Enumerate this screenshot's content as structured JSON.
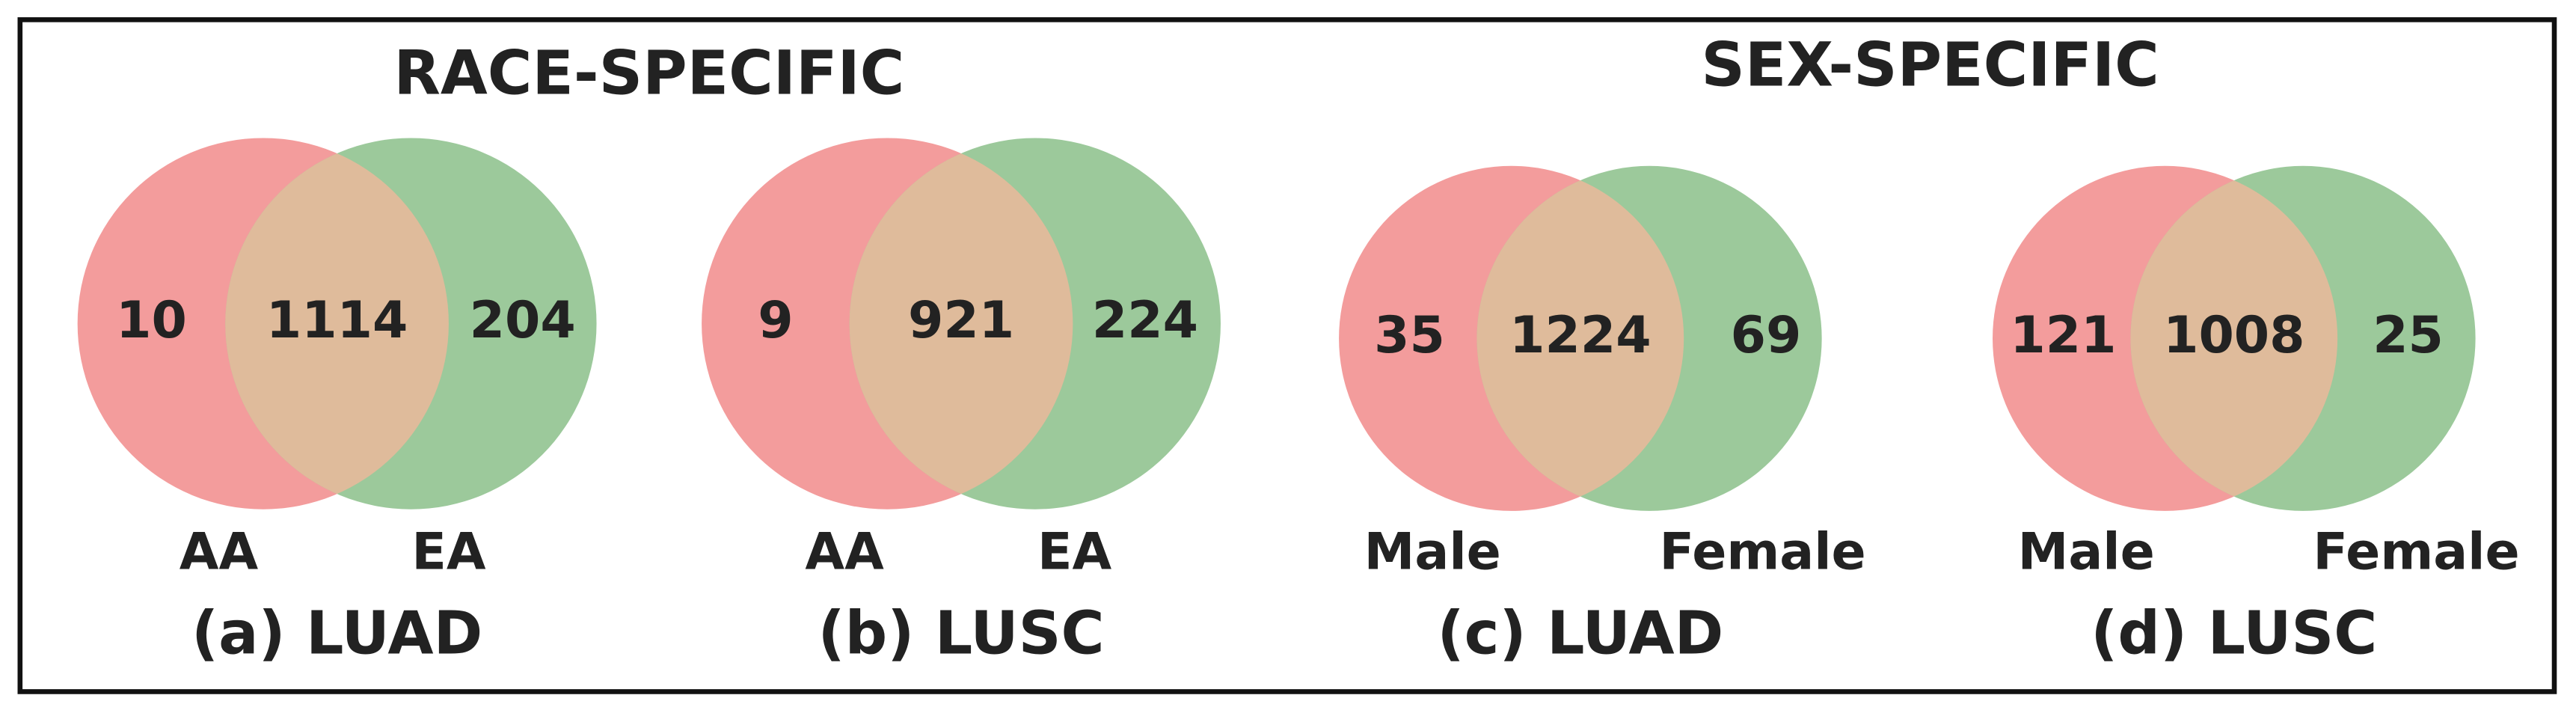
{
  "headings": [
    "RACE-SPECIFIC",
    "SEX-SPECIFIC"
  ],
  "panels": [
    {
      "caption": "(a) LUAD",
      "sets": [
        "AA",
        "EA"
      ],
      "counts": [
        10,
        1114,
        204
      ]
    },
    {
      "caption": "(b) LUSC",
      "sets": [
        "AA",
        "EA"
      ],
      "counts": [
        9,
        921,
        224
      ]
    },
    {
      "caption": "(c) LUAD",
      "sets": [
        "Male",
        "Female"
      ],
      "counts": [
        35,
        1224,
        69
      ]
    },
    {
      "caption": "(d) LUSC",
      "sets": [
        "Male",
        "Female"
      ],
      "counts": [
        121,
        1008,
        25
      ]
    }
  ]
}
